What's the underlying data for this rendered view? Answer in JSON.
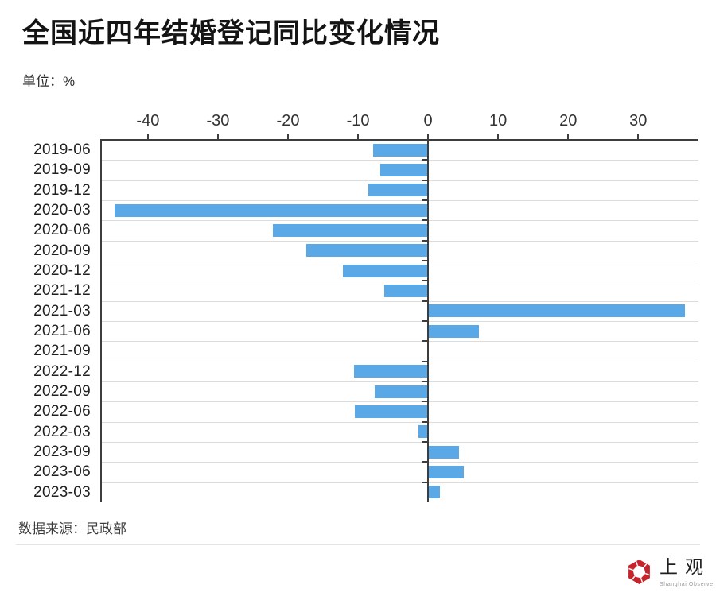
{
  "title": "全国近四年结婚登记同比变化情况",
  "unit_label": "单位：%",
  "source_label": "数据来源：民政部",
  "logo": {
    "title": "上观",
    "caption": "Shanghai Observer",
    "color": "#c5242c"
  },
  "chart_data": {
    "type": "bar",
    "orientation": "horizontal",
    "title": "全国近四年结婚登记同比变化情况",
    "unit": "%",
    "source": "民政部",
    "categories": [
      "2019-06",
      "2019-09",
      "2019-12",
      "2020-03",
      "2020-06",
      "2020-09",
      "2020-12",
      "2021-12",
      "2021-03",
      "2021-06",
      "2021-09",
      "2022-12",
      "2022-09",
      "2022-06",
      "2022-03",
      "2023-09",
      "2023-06",
      "2023-03"
    ],
    "values": [
      -7.8,
      -6.8,
      -8.5,
      -44.7,
      -22.2,
      -17.4,
      -12.2,
      -6.3,
      36.7,
      7.3,
      0,
      -10.6,
      -7.6,
      -10.5,
      -1.4,
      4.4,
      5.1,
      1.7
    ],
    "xticks": [
      -40,
      -30,
      -20,
      -10,
      0,
      10,
      20,
      30
    ],
    "xlim": [
      -46.8,
      38.6
    ],
    "bar_color": "#5aa9e6",
    "grid": true,
    "legend": "none"
  }
}
